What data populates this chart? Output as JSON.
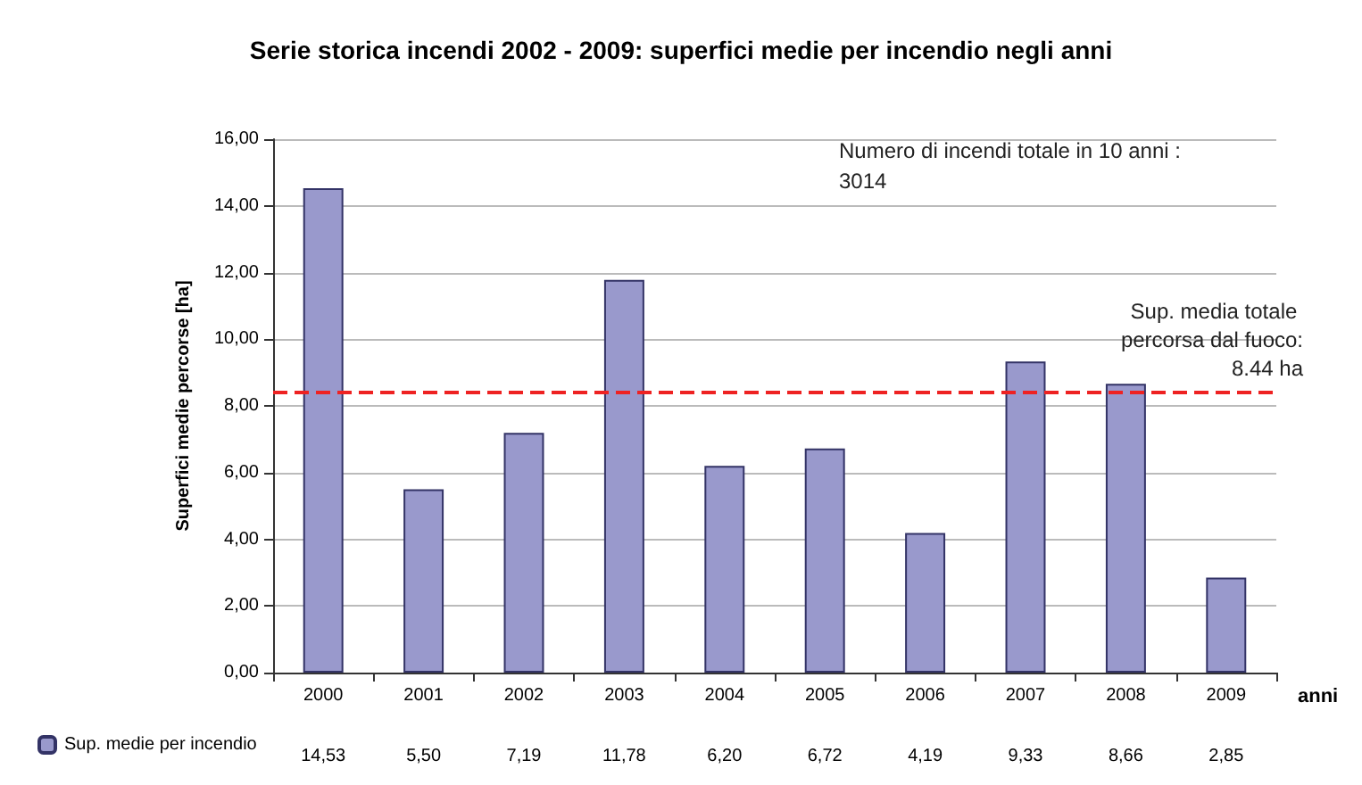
{
  "chart_data": {
    "type": "bar",
    "title": "Serie storica incendi 2002 - 2009: superfici medie per incendio negli anni",
    "xlabel": "anni",
    "ylabel": "Superfici medie percorse [ha]",
    "categories": [
      "2000",
      "2001",
      "2002",
      "2003",
      "2004",
      "2005",
      "2006",
      "2007",
      "2008",
      "2009"
    ],
    "series": [
      {
        "name": "Sup. medie per incendio",
        "color": "#9999cc",
        "values": [
          14.53,
          5.5,
          7.19,
          11.78,
          6.2,
          6.72,
          4.19,
          9.33,
          8.66,
          2.85
        ],
        "value_labels": [
          "14,53",
          "5,50",
          "7,19",
          "11,78",
          "6,20",
          "6,72",
          "4,19",
          "9,33",
          "8,66",
          "2,85"
        ]
      }
    ],
    "ylim": [
      0,
      16
    ],
    "yticks": [
      {
        "value": 0,
        "label": "0,00"
      },
      {
        "value": 2,
        "label": "2,00"
      },
      {
        "value": 4,
        "label": "4,00"
      },
      {
        "value": 6,
        "label": "6,00"
      },
      {
        "value": 8,
        "label": "8,00"
      },
      {
        "value": 10,
        "label": "10,00"
      },
      {
        "value": 12,
        "label": "12,00"
      },
      {
        "value": 14,
        "label": "14,00"
      },
      {
        "value": 16,
        "label": "16,00"
      }
    ],
    "grid": "y",
    "legend": "bottom left",
    "ref_lines": [
      {
        "axis": "y",
        "value": 8.44,
        "label": "Sup. media totale percorsa dal fuoco: 8.44 ha",
        "color": "#ee2222",
        "line_style": "dashed"
      }
    ],
    "annotations": [
      "Numero di incendi totale in 10 anni : 3014"
    ]
  }
}
